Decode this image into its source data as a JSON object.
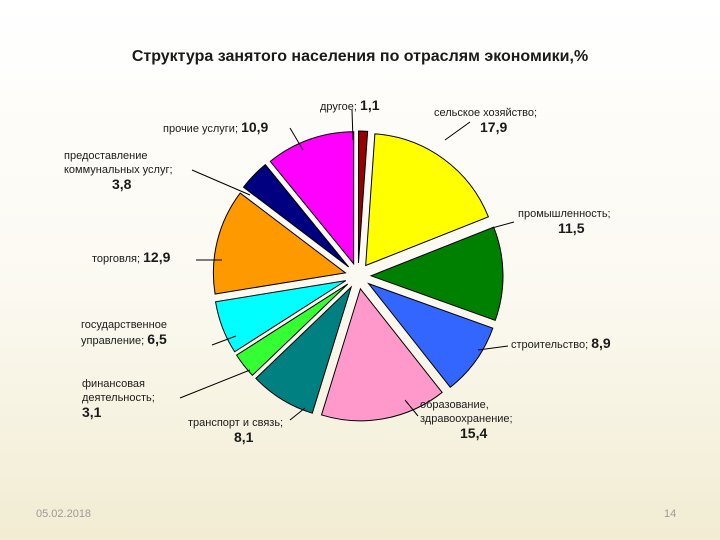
{
  "chart_data": {
    "type": "pie",
    "title": "Структура занятого населения по отраслям экономики,%",
    "slices": [
      {
        "label": "сельское хозяйство;",
        "value": 17.9,
        "display": "17,9",
        "color": "#ffff00"
      },
      {
        "label": "промышленность;",
        "value": 11.5,
        "display": "11,5",
        "color": "#008000"
      },
      {
        "label": "строительство;",
        "value": 8.9,
        "display": "8,9",
        "color": "#3366ff"
      },
      {
        "label": "образование, здравоохранение;",
        "value": 15.4,
        "display": "15,4",
        "color": "#ff99cc"
      },
      {
        "label": "транспорт и связь;",
        "value": 8.1,
        "display": "8,1",
        "color": "#008080"
      },
      {
        "label": "финансовая деятельность;",
        "value": 3.1,
        "display": "3,1",
        "color": "#33ff33"
      },
      {
        "label": "государственное управление;",
        "value": 6.5,
        "display": "6,5",
        "color": "#00ffff"
      },
      {
        "label": "торговля;",
        "value": 12.9,
        "display": "12,9",
        "color": "#ff9900"
      },
      {
        "label": "предоставление коммунальных услуг;",
        "value": 3.8,
        "display": "3,8",
        "color": "#000080"
      },
      {
        "label": "прочие услуги;",
        "value": 10.9,
        "display": "10,9",
        "color": "#ff00ff"
      },
      {
        "label": "другое;",
        "value": 1.1,
        "display": "1,1",
        "color": "#990000"
      }
    ]
  },
  "footer": {
    "date": "05.02.2018",
    "page": "14"
  }
}
